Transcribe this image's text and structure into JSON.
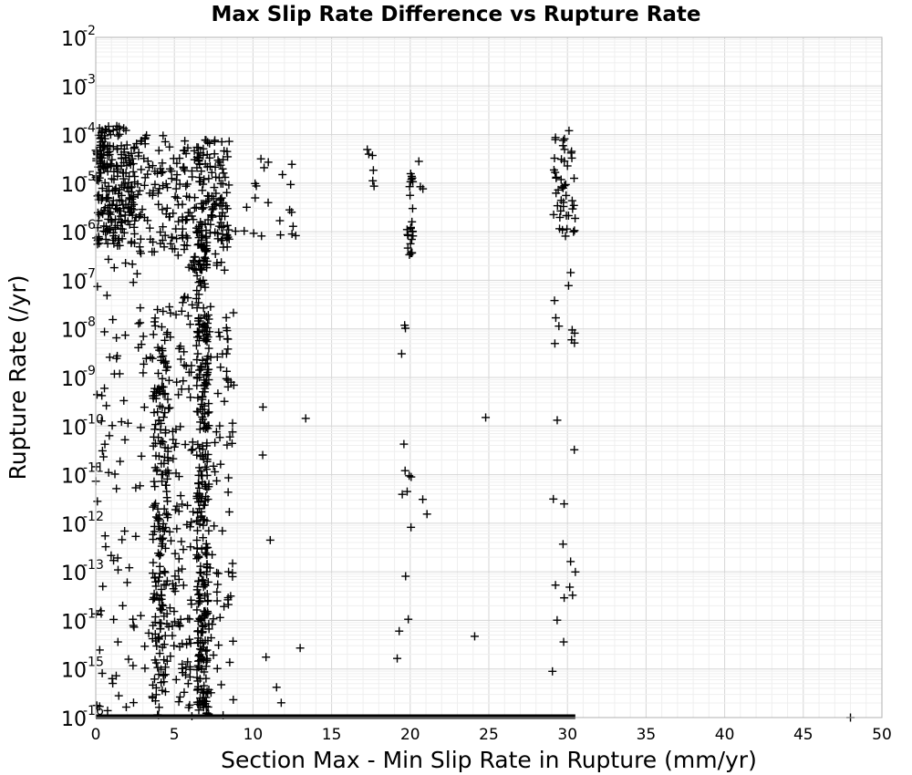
{
  "chart_data": {
    "type": "scatter",
    "title": "Max Slip Rate Difference vs Rupture Rate",
    "xlabel": "Section Max - Min Slip Rate in Rupture (mm/yr)",
    "ylabel": "Rupture Rate (/yr)",
    "xlim": [
      0,
      50
    ],
    "ylim": [
      1e-16,
      0.01
    ],
    "yscale": "log",
    "grid": true,
    "marker": "plus",
    "x_ticks": [
      "0",
      "5",
      "10",
      "15",
      "20",
      "25",
      "30",
      "35",
      "40",
      "45",
      "50"
    ],
    "y_ticks": [
      {
        "base": "10",
        "exp": "-2"
      },
      {
        "base": "10",
        "exp": "-3"
      },
      {
        "base": "10",
        "exp": "-4"
      },
      {
        "base": "10",
        "exp": "-5"
      },
      {
        "base": "10",
        "exp": "-6"
      },
      {
        "base": "10",
        "exp": "-7"
      },
      {
        "base": "10",
        "exp": "-8"
      },
      {
        "base": "10",
        "exp": "-9"
      },
      {
        "base": "10",
        "exp": "-10"
      },
      {
        "base": "10",
        "exp": "-11"
      },
      {
        "base": "10",
        "exp": "-12"
      },
      {
        "base": "10",
        "exp": "-13"
      },
      {
        "base": "10",
        "exp": "-14"
      },
      {
        "base": "10",
        "exp": "-15"
      },
      {
        "base": "10",
        "exp": "-16"
      }
    ],
    "clusters": [
      {
        "x": [
          0,
          2.5
        ],
        "log_y": [
          -6.3,
          -3.8
        ],
        "count": 240
      },
      {
        "x": [
          0,
          3.5
        ],
        "log_y": [
          -16,
          -6.5
        ],
        "count": 90
      },
      {
        "x": [
          2.5,
          5.5
        ],
        "log_y": [
          -6.5,
          -4.0
        ],
        "count": 90
      },
      {
        "x": [
          3.6,
          4.6
        ],
        "log_y": [
          -16,
          -7.6
        ],
        "count": 200
      },
      {
        "x": [
          4.6,
          6.2
        ],
        "log_y": [
          -16,
          -7.3
        ],
        "count": 110
      },
      {
        "x": [
          5.5,
          8.5
        ],
        "log_y": [
          -6.8,
          -4.1
        ],
        "count": 180
      },
      {
        "x": [
          6.4,
          7.2
        ],
        "log_y": [
          -16,
          -5.8
        ],
        "count": 320
      },
      {
        "x": [
          7.0,
          8.8
        ],
        "log_y": [
          -16,
          -7.5
        ],
        "count": 80
      },
      {
        "x": [
          8.5,
          13
        ],
        "log_y": [
          -6.1,
          -4.5
        ],
        "count": 22
      },
      {
        "x": [
          10,
          13.5
        ],
        "log_y": [
          -16,
          -9.5
        ],
        "count": 6
      },
      {
        "x": [
          17.2,
          18.0
        ],
        "log_y": [
          -5.2,
          -4.3
        ],
        "count": 6
      },
      {
        "x": [
          19.8,
          20.2
        ],
        "log_y": [
          -6.5,
          -4.8
        ],
        "count": 25
      },
      {
        "x": [
          19.0,
          20.2
        ],
        "log_y": [
          -15,
          -7.5
        ],
        "count": 14
      },
      {
        "x": [
          20.5,
          21.0
        ],
        "log_y": [
          -5.2,
          -4.4
        ],
        "count": 3
      },
      {
        "x": [
          20.5,
          21.2
        ],
        "log_y": [
          -12,
          -11
        ],
        "count": 2
      },
      {
        "x": [
          29.0,
          30.5
        ],
        "log_y": [
          -6.1,
          -4.0
        ],
        "count": 45
      },
      {
        "x": [
          29.0,
          30.6
        ],
        "log_y": [
          -16,
          -6.8
        ],
        "count": 22
      }
    ],
    "points": [
      {
        "x": 24.8,
        "y": 1.5e-10
      },
      {
        "x": 24.1,
        "y": 4.7e-15
      },
      {
        "x": 11.5,
        "y": 4.2e-16
      },
      {
        "x": 13.0,
        "y": 2.7e-15
      },
      {
        "x": 48.0,
        "y": 1e-16
      },
      {
        "x": 30.1,
        "y": 0.00012
      },
      {
        "x": 29.2,
        "y": 5e-09
      },
      {
        "x": 30.3,
        "y": 9.5e-09
      }
    ],
    "baseline": {
      "x": [
        0,
        30.5
      ],
      "y": 1e-16
    }
  }
}
